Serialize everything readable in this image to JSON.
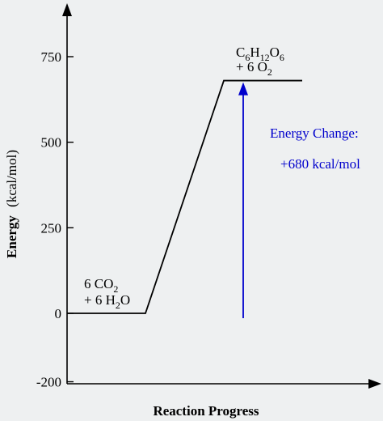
{
  "chart_data": {
    "type": "line",
    "title": "",
    "xlabel": "Reaction Progress",
    "ylabel": "Energy",
    "ylabel_unit": "(kcal/mol)",
    "ylim": [
      -200,
      880
    ],
    "yticks": [
      750,
      500,
      250,
      0,
      -200
    ],
    "ytick_labels": [
      "750",
      "500",
      "250",
      "0",
      "-200"
    ],
    "x_ticks_shown": false,
    "grid": false,
    "series": [
      {
        "x": [
          0,
          1,
          2,
          3
        ],
        "y": [
          0,
          0,
          680,
          680
        ]
      }
    ],
    "xlim": [
      0,
      4.2
    ],
    "reactants": {
      "line1": "6 CO",
      "line1_sub": "2",
      "line2": "+ 6 H",
      "line2_sub": "2",
      "line2_end": "O"
    },
    "products": {
      "line1_parts": [
        "C",
        "6",
        "H",
        "12",
        "O",
        "6"
      ],
      "line2": "+ 6 O",
      "line2_sub": "2"
    },
    "annotation": {
      "line1": "Energy Change:",
      "line2": "+680 kcal/mol",
      "arrow_from": 0,
      "arrow_to": 680,
      "color": "#0000cc"
    }
  }
}
